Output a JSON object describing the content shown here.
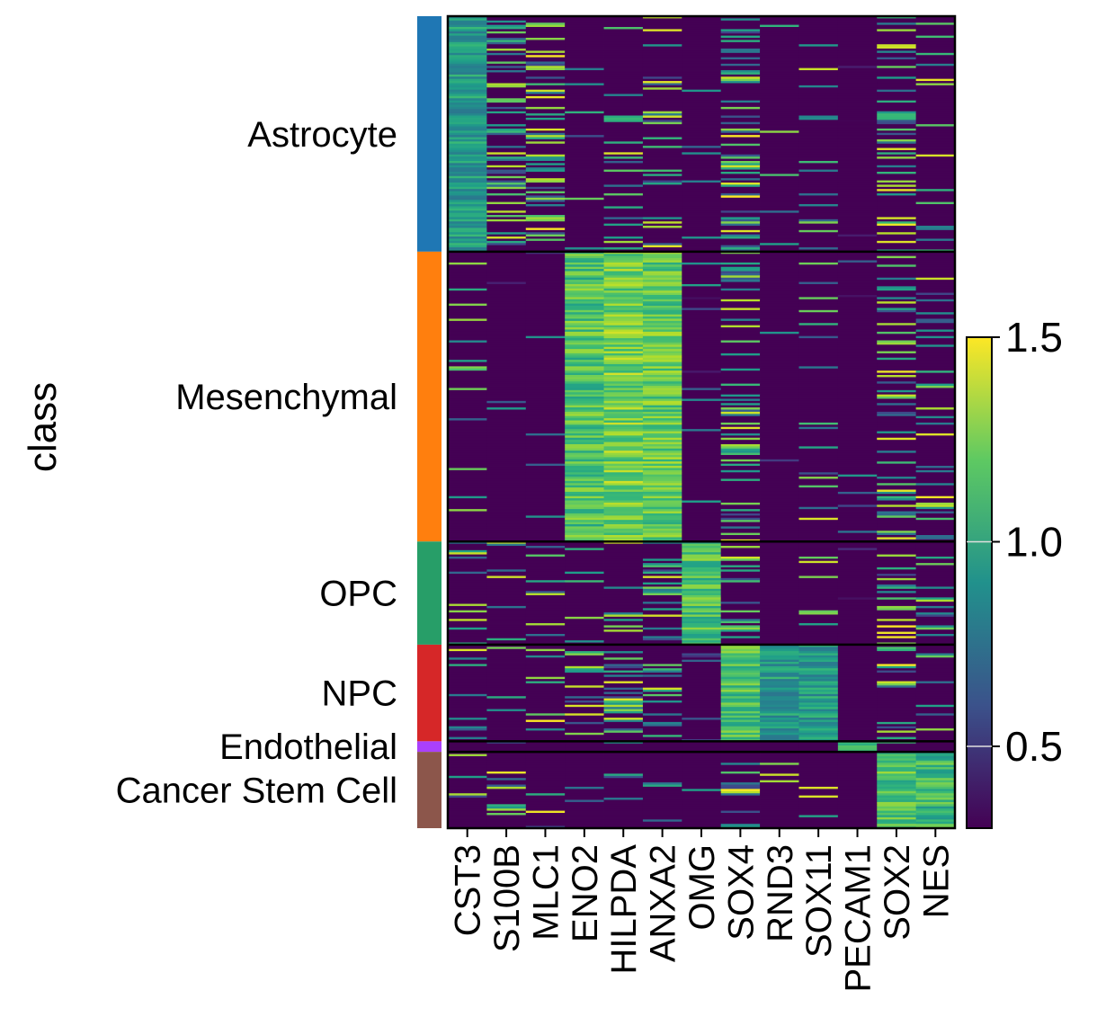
{
  "chart_data": {
    "type": "heatmap",
    "ylabel": "class",
    "genes": [
      "CST3",
      "S100B",
      "MLC1",
      "ENO2",
      "HILPDA",
      "ANXA2",
      "OMG",
      "SOX4",
      "RND3",
      "SOX11",
      "PECAM1",
      "SOX2",
      "NES"
    ],
    "groups": [
      {
        "name": "Astrocyte",
        "color": "#1f77b4",
        "row_fraction": 0.29,
        "mean_expression": [
          0.95,
          0.75,
          0.65,
          0.35,
          0.5,
          0.5,
          0.3,
          0.7,
          0.35,
          0.4,
          0.3,
          0.65,
          0.45
        ]
      },
      {
        "name": "Mesenchymal",
        "color": "#ff7f0e",
        "row_fraction": 0.357,
        "mean_expression": [
          0.4,
          0.3,
          0.3,
          1.15,
          1.25,
          1.2,
          0.3,
          0.65,
          0.3,
          0.45,
          0.3,
          0.6,
          0.5
        ]
      },
      {
        "name": "OPC",
        "color": "#279e68",
        "row_fraction": 0.127,
        "mean_expression": [
          0.5,
          0.45,
          0.4,
          0.45,
          0.45,
          0.55,
          1.15,
          0.65,
          0.3,
          0.4,
          0.3,
          0.55,
          0.5
        ]
      },
      {
        "name": "NPC",
        "color": "#d62728",
        "row_fraction": 0.119,
        "mean_expression": [
          0.5,
          0.45,
          0.4,
          0.65,
          0.65,
          0.65,
          0.3,
          1.15,
          0.95,
          0.95,
          0.3,
          0.6,
          0.5
        ]
      },
      {
        "name": "Endothelial",
        "color": "#aa40fc",
        "row_fraction": 0.013,
        "mean_expression": [
          0.4,
          0.3,
          0.3,
          0.35,
          0.4,
          0.4,
          0.3,
          0.4,
          0.3,
          0.3,
          1.0,
          0.4,
          0.35
        ]
      },
      {
        "name": "Cancer Stem Cell",
        "color": "#8c564b",
        "row_fraction": 0.094,
        "mean_expression": [
          0.45,
          0.4,
          0.35,
          0.4,
          0.4,
          0.4,
          0.3,
          0.75,
          0.35,
          0.4,
          0.3,
          1.15,
          1.1
        ]
      }
    ],
    "colorbar": {
      "colormap": "viridis",
      "range": [
        0.3,
        1.5
      ],
      "ticks": [
        "0.5",
        "1.0",
        "1.5"
      ]
    }
  }
}
